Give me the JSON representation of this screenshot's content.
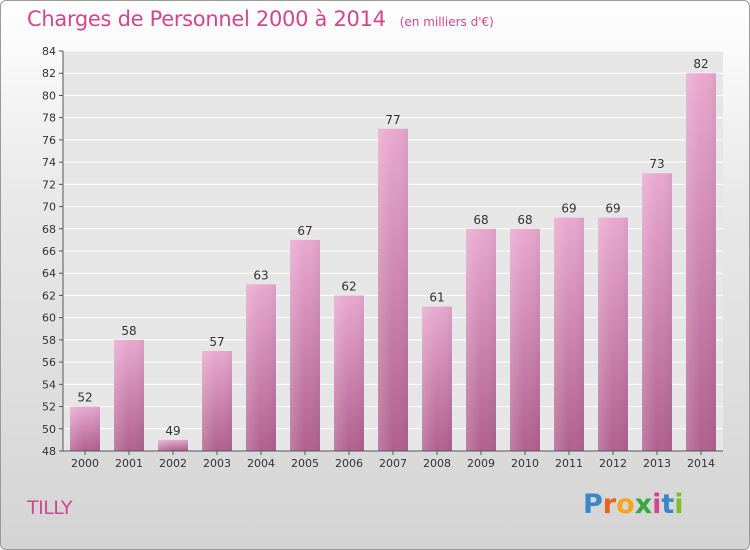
{
  "title": "Charges de Personnel 2000 à 2014",
  "unit": "(en milliers d'€)",
  "commune": "TILLY",
  "logo": {
    "letters": [
      "P",
      "r",
      "o",
      "x",
      "i",
      "t",
      "i"
    ],
    "colors": [
      "#3a86c8",
      "#e8641e",
      "#f2a71b",
      "#3aa53a",
      "#d4458f",
      "#3a86c8",
      "#7cbf2a"
    ]
  },
  "colors": {
    "accent": "#d4458f",
    "bar_top": "#e8a8cf",
    "bar_bottom": "#b0608f"
  },
  "chart_data": {
    "type": "bar",
    "categories": [
      "2000",
      "2001",
      "2002",
      "2003",
      "2004",
      "2005",
      "2006",
      "2007",
      "2008",
      "2009",
      "2010",
      "2011",
      "2012",
      "2013",
      "2014"
    ],
    "values": [
      52,
      58,
      49,
      57,
      63,
      67,
      62,
      77,
      61,
      68,
      68,
      69,
      69,
      73,
      82
    ],
    "ylim": [
      48,
      84
    ],
    "yticks": [
      48,
      50,
      52,
      54,
      56,
      58,
      60,
      62,
      64,
      66,
      68,
      70,
      72,
      74,
      76,
      78,
      80,
      82,
      84
    ],
    "grid": true,
    "title": "Charges de Personnel 2000 à 2014",
    "xlabel": "",
    "ylabel": ""
  }
}
